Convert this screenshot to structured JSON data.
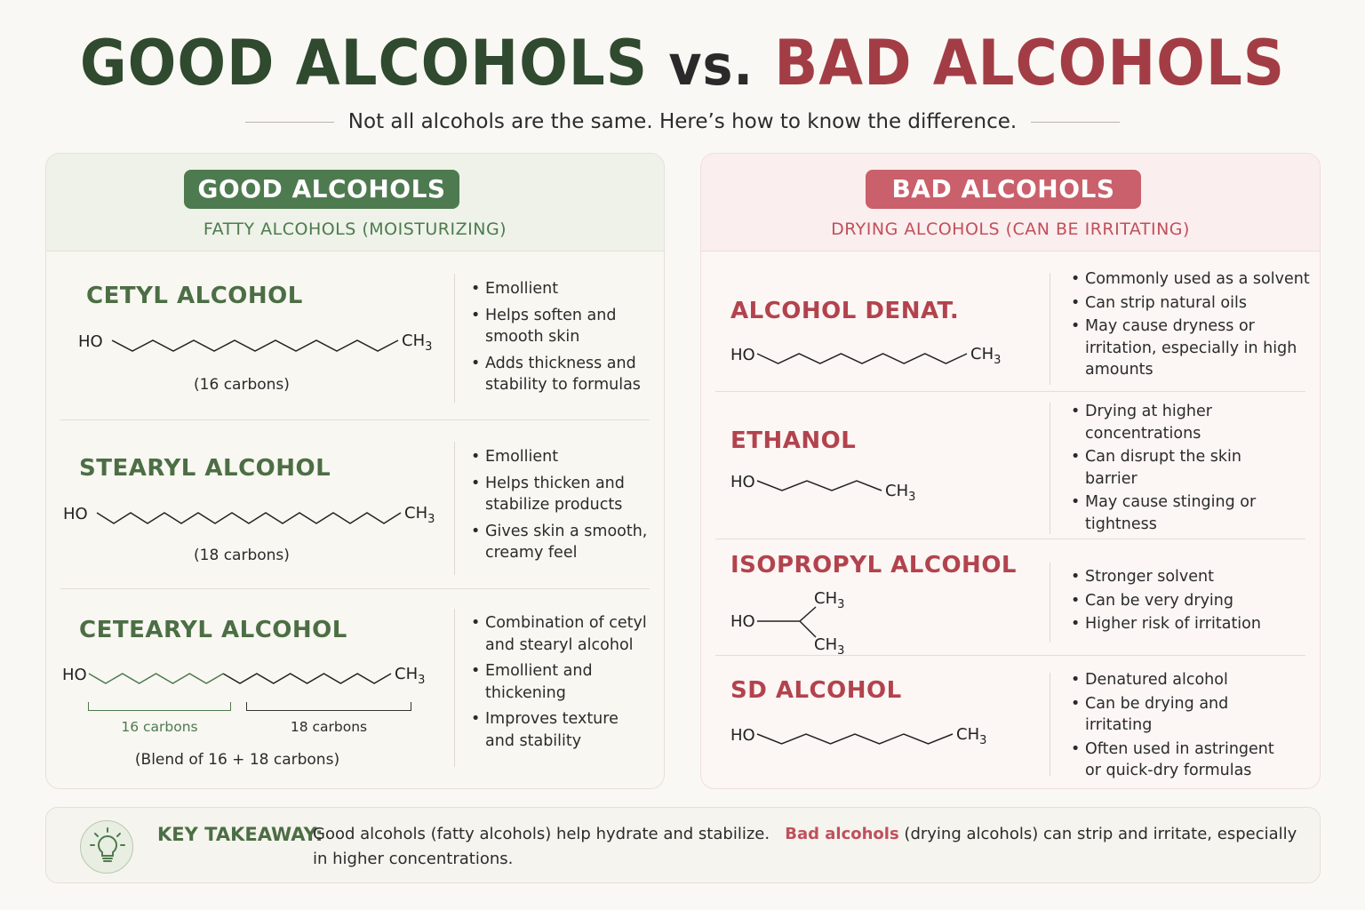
{
  "title": {
    "good": "GOOD ALCOHOLS",
    "vs": "vs.",
    "bad": "BAD ALCOHOLS"
  },
  "subtitle": "Not all alcohols are the same. Here’s how to know the difference.",
  "good": {
    "header": "GOOD ALCOHOLS",
    "subheader": "FATTY ALCOHOLS (MOISTURIZING)",
    "items": [
      {
        "name": "CETYL ALCOHOL",
        "caption": "(16 carbons)",
        "bullets": [
          "Emollient",
          "Helps soften and smooth skin",
          "Adds thickness and stability to formulas"
        ]
      },
      {
        "name": "STEARYL ALCOHOL",
        "caption": "(18 carbons)",
        "bullets": [
          "Emollient",
          "Helps thicken and stabilize products",
          "Gives skin a smooth, creamy feel"
        ]
      },
      {
        "name": "CETEARYL ALCOHOL",
        "caption": "(Blend of 16 + 18 carbons)",
        "bracket_left": "16 carbons",
        "bracket_right": "18 carbons",
        "bullets": [
          "Combination of cetyl and stearyl alcohol",
          "Emollient and thickening",
          "Improves texture and stability"
        ]
      }
    ]
  },
  "bad": {
    "header": "BAD ALCOHOLS",
    "subheader": "DRYING ALCOHOLS (CAN BE IRRITATING)",
    "items": [
      {
        "name": "ALCOHOL DENAT.",
        "bullets": [
          "Commonly used as a solvent",
          "Can strip natural oils",
          "May cause dryness or irritation, especially in high amounts"
        ]
      },
      {
        "name": "ETHANOL",
        "bullets": [
          "Drying at higher concentrations",
          "Can disrupt the skin barrier",
          "May cause stinging or tightness"
        ]
      },
      {
        "name": "ISOPROPYL ALCOHOL",
        "bullets": [
          "Stronger solvent",
          "Can be very drying",
          "Higher risk of irritation"
        ]
      },
      {
        "name": "SD ALCOHOL",
        "bullets": [
          "Denatured alcohol",
          "Can be drying and irritating",
          "Often used in astringent or quick-dry formulas"
        ]
      }
    ]
  },
  "chem": {
    "ho": "HO",
    "ch": "CH",
    "sub": "3"
  },
  "takeaway": {
    "label": "KEY TAKEAWAY:",
    "text_1": "Good alcohols (fatty alcohols) help hydrate and stabilize.",
    "highlight": "Bad alcohols",
    "text_2": "(drying alcohols) can strip and irritate, especially in higher concentrations."
  },
  "colors": {
    "good": "#4e7a4f",
    "good_dark": "#2f4a2e",
    "bad": "#c9606b",
    "bad_dark": "#a33d45"
  },
  "icons": {
    "takeaway": "lightbulb-icon"
  }
}
